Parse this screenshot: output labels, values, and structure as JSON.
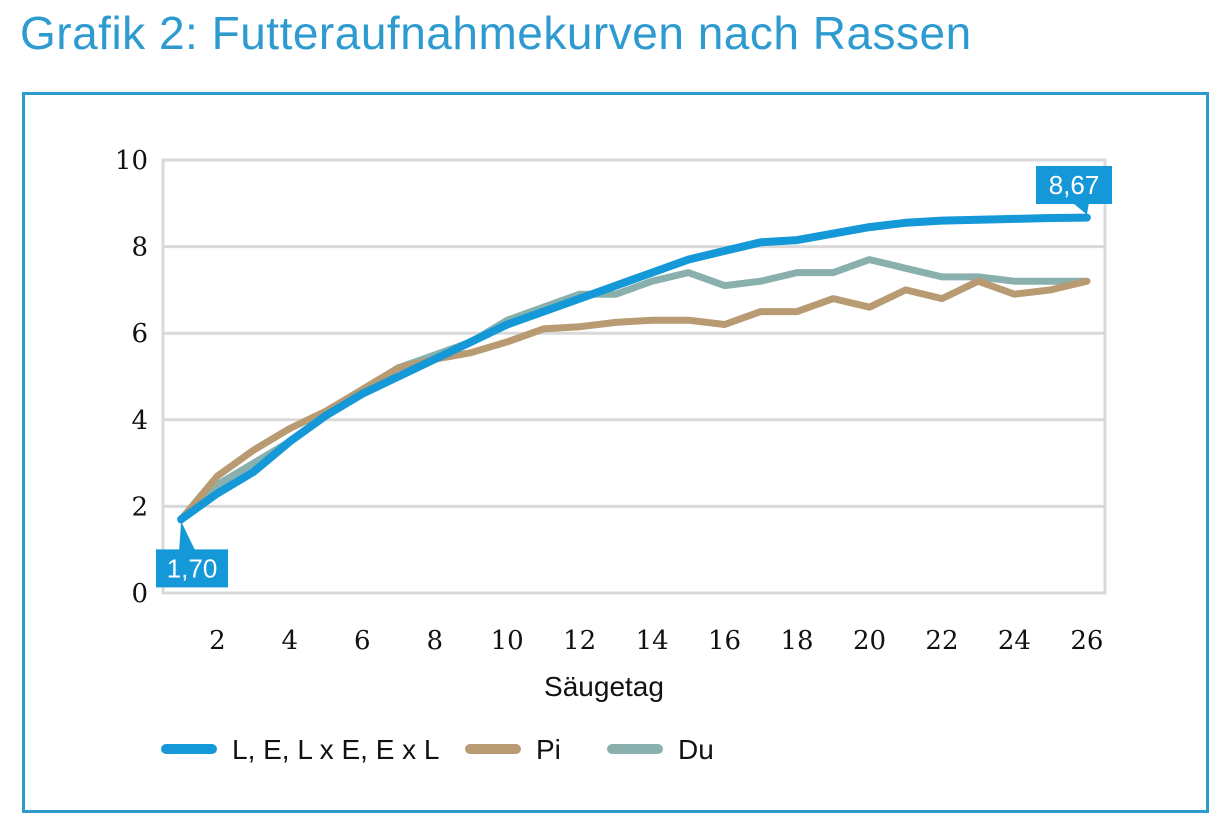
{
  "title": "Grafik 2: Futteraufnahmekurven nach Rassen",
  "chart_data": {
    "type": "line",
    "xlabel": "Säugetag",
    "ylabel": "",
    "ylim": [
      0,
      10
    ],
    "yticks": [
      "0",
      "2",
      "4",
      "6",
      "8",
      "10"
    ],
    "xticks": [
      "2",
      "4",
      "6",
      "8",
      "10",
      "12",
      "14",
      "16",
      "18",
      "20",
      "22",
      "24",
      "26"
    ],
    "x": [
      1,
      2,
      3,
      4,
      5,
      6,
      7,
      8,
      9,
      10,
      11,
      12,
      13,
      14,
      15,
      16,
      17,
      18,
      19,
      20,
      21,
      22,
      23,
      24,
      25,
      26
    ],
    "grid": true,
    "legend_position": "bottom",
    "series": [
      {
        "name": "L, E, L x E, E x L",
        "color": "#1598d8",
        "values": [
          1.7,
          2.3,
          2.8,
          3.5,
          4.1,
          4.6,
          5.0,
          5.4,
          5.8,
          6.2,
          6.5,
          6.8,
          7.1,
          7.4,
          7.7,
          7.9,
          8.1,
          8.15,
          8.3,
          8.45,
          8.55,
          8.6,
          8.62,
          8.64,
          8.66,
          8.67
        ]
      },
      {
        "name": "Pi",
        "color": "#b89b72",
        "values": [
          1.7,
          2.7,
          3.3,
          3.8,
          4.2,
          4.7,
          5.2,
          5.4,
          5.55,
          5.8,
          6.1,
          6.15,
          6.25,
          6.3,
          6.3,
          6.2,
          6.5,
          6.5,
          6.8,
          6.6,
          7.0,
          6.8,
          7.2,
          6.9,
          7.0,
          7.2
        ]
      },
      {
        "name": "Du",
        "color": "#8ab0ae",
        "values": [
          1.7,
          2.5,
          3.0,
          3.5,
          4.1,
          4.7,
          5.2,
          5.5,
          5.8,
          6.3,
          6.6,
          6.9,
          6.9,
          7.2,
          7.4,
          7.1,
          7.2,
          7.4,
          7.4,
          7.7,
          7.5,
          7.3,
          7.3,
          7.2,
          7.2,
          7.2
        ]
      }
    ],
    "annotations": [
      {
        "text": "1,70",
        "series": 0,
        "x": 1,
        "y": 1.7
      },
      {
        "text": "8,67",
        "series": 0,
        "x": 26,
        "y": 8.67
      }
    ]
  }
}
